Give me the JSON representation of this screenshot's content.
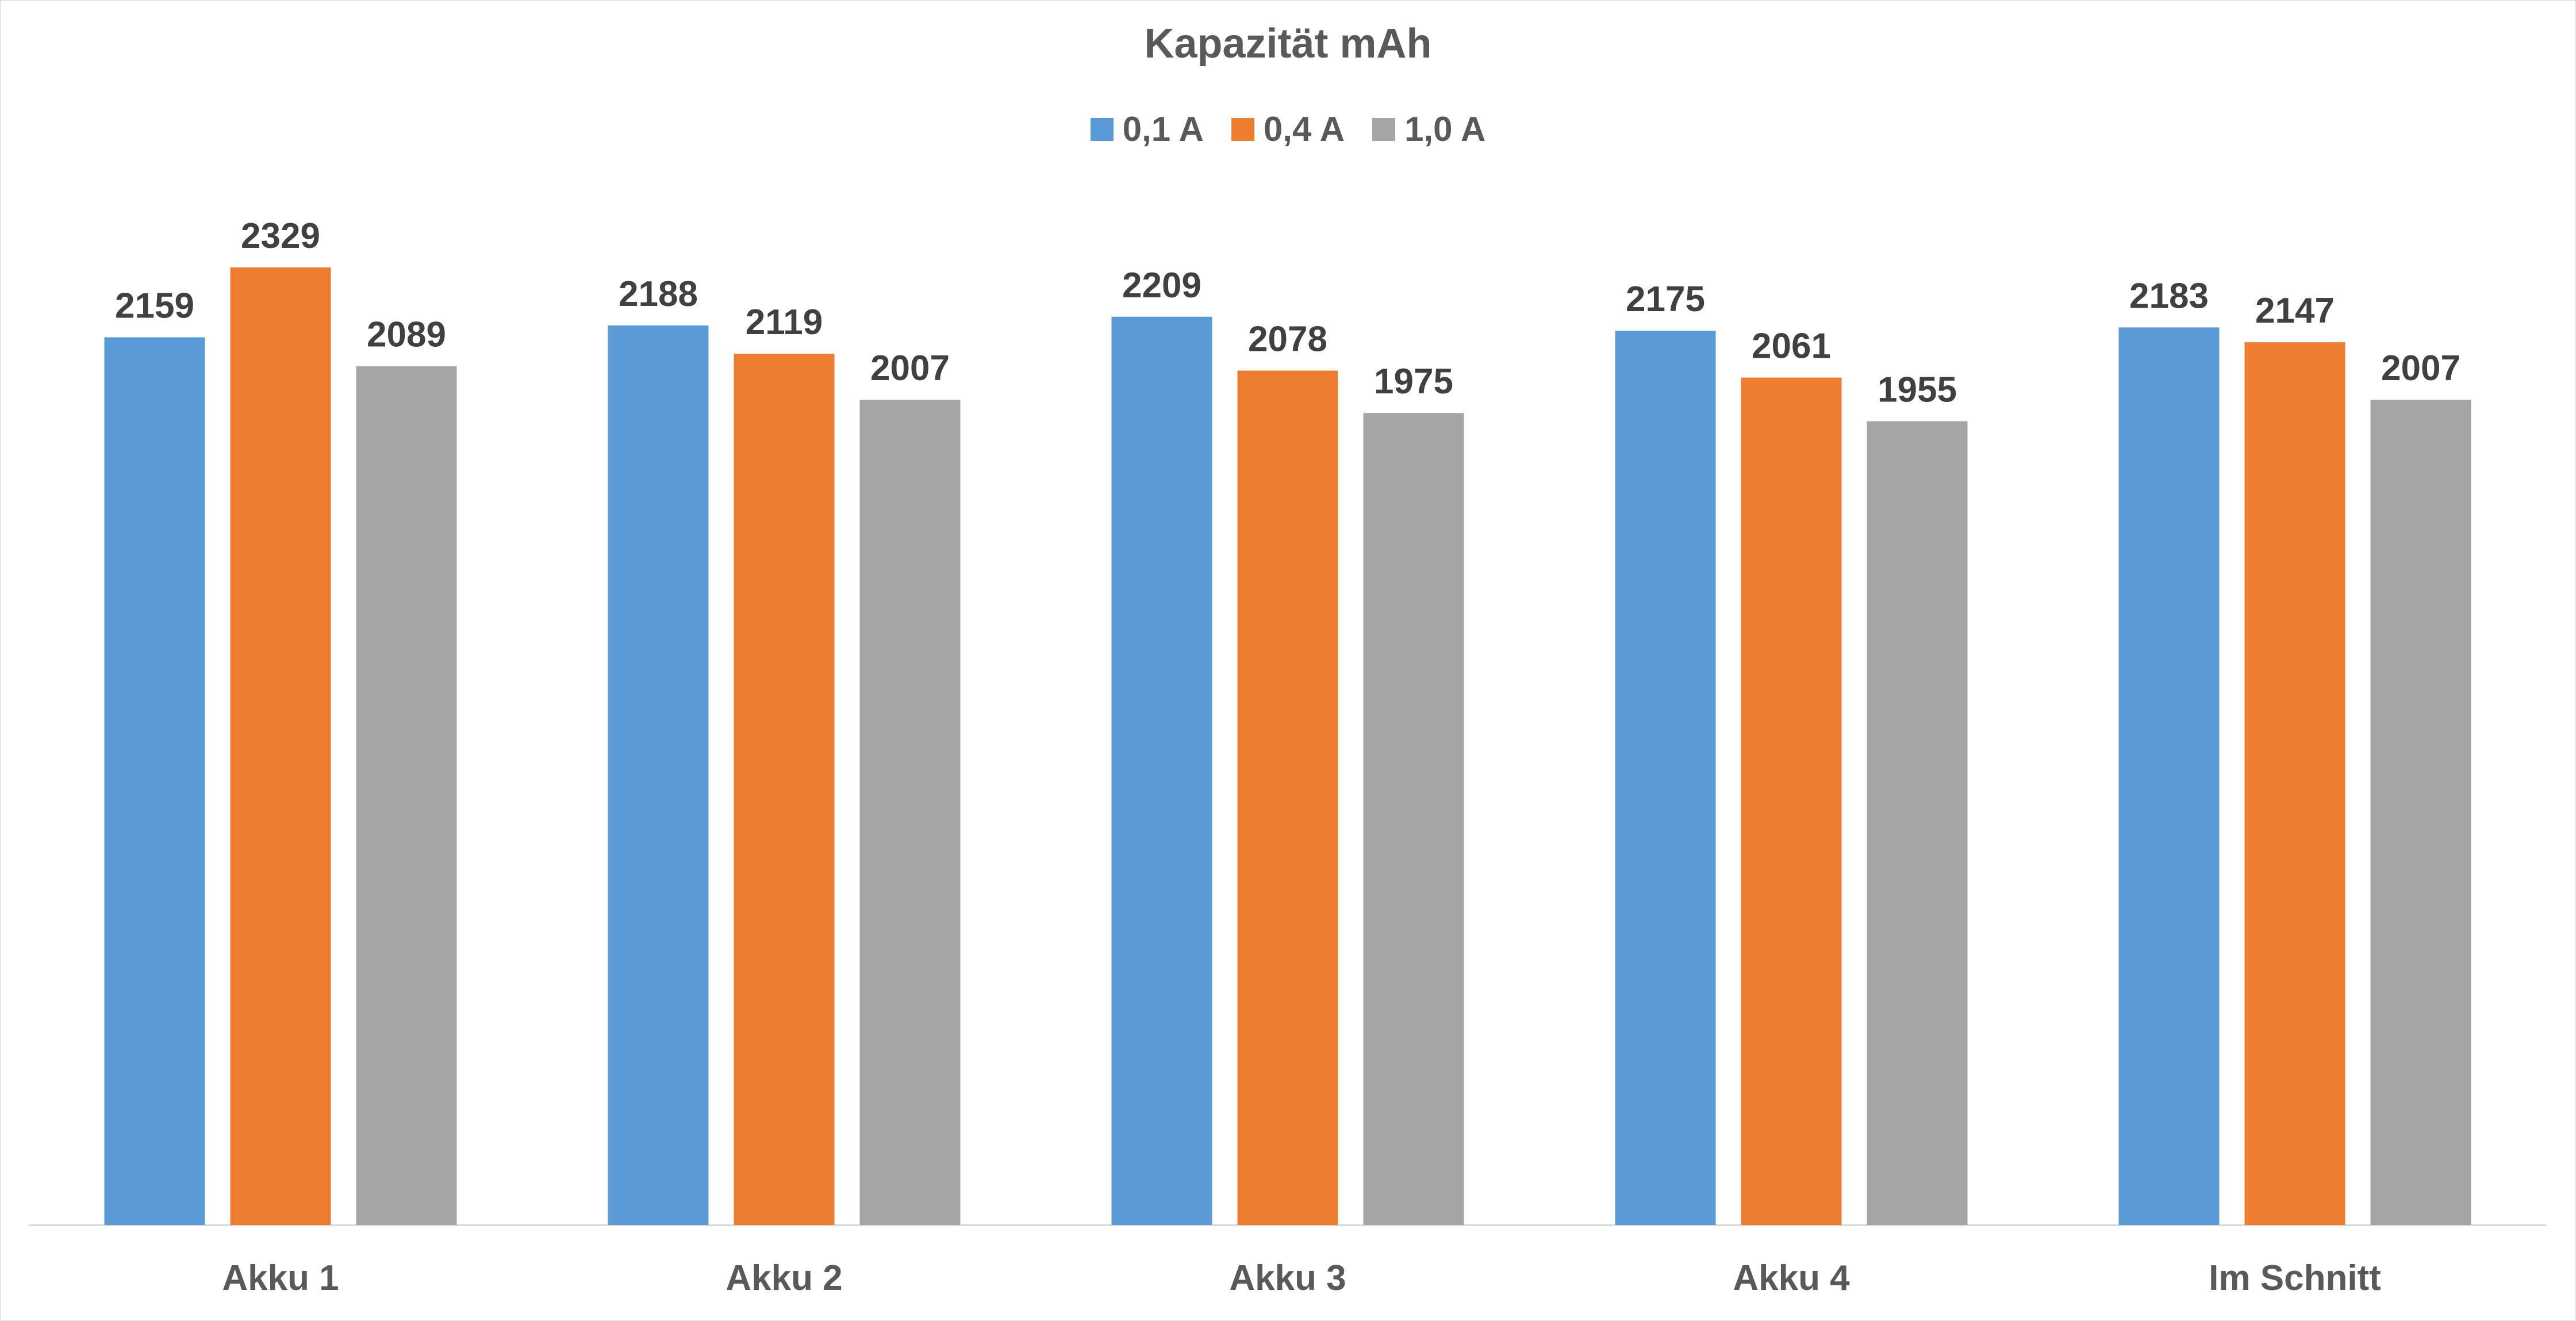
{
  "chart_data": {
    "type": "bar",
    "title": "Kapazität mAh",
    "categories": [
      "Akku 1",
      "Akku 2",
      "Akku 3",
      "Akku 4",
      "Im Schnitt"
    ],
    "series": [
      {
        "name": "0,1 A",
        "color": "#5B9BD5",
        "values": [
          2159,
          2188,
          2209,
          2175,
          2183
        ]
      },
      {
        "name": "0,4 A",
        "color": "#ED7D31",
        "values": [
          2329,
          2119,
          2078,
          2061,
          2147
        ]
      },
      {
        "name": "1,0 A",
        "color": "#A5A5A5",
        "values": [
          2089,
          2007,
          1975,
          1955,
          2007
        ]
      }
    ],
    "ylim": [
      0,
      2329
    ],
    "grid": false,
    "legend_position": "top",
    "data_labels": true
  }
}
